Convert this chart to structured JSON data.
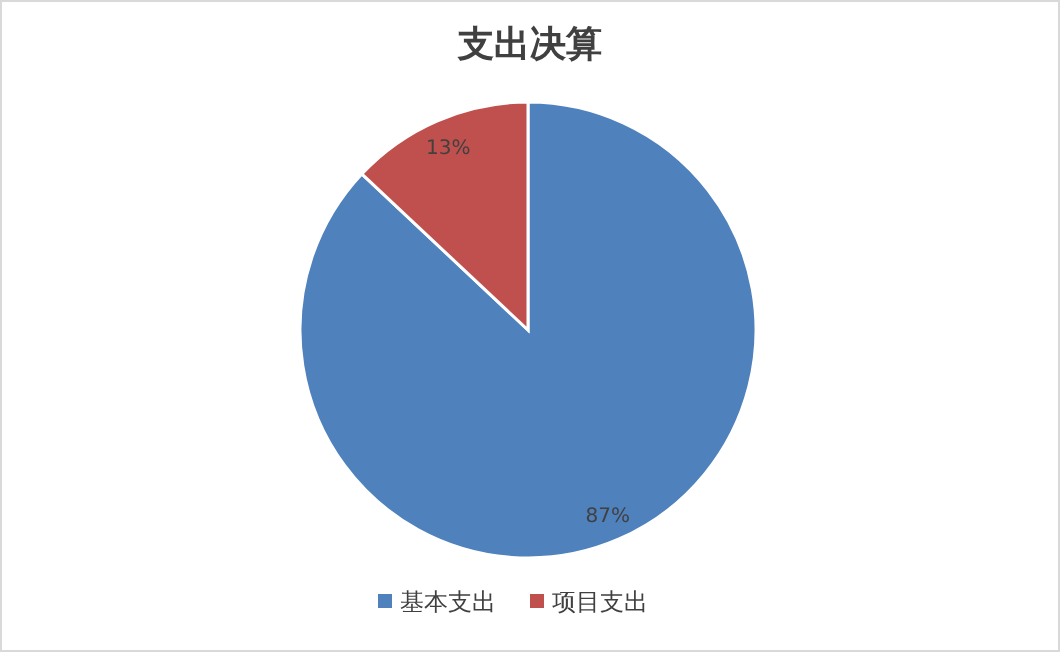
{
  "chart_data": {
    "type": "pie",
    "title": "支出决算",
    "categories": [
      "基本支出",
      "项目支出"
    ],
    "values": [
      87,
      13
    ],
    "colors": [
      "#4f81bd",
      "#c0504d"
    ],
    "value_labels": [
      "87%",
      "13%"
    ],
    "legend": "bottom"
  }
}
